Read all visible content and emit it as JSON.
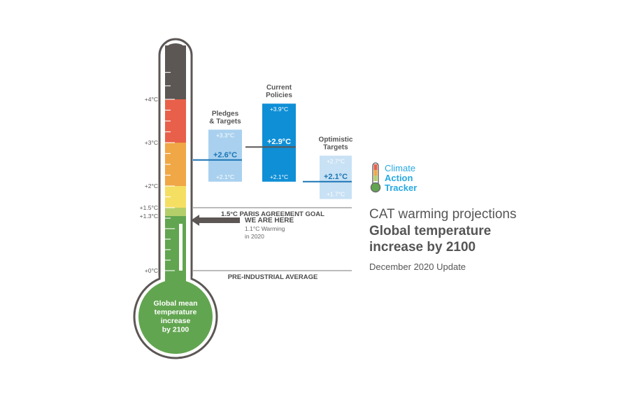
{
  "chart_data": {
    "type": "thermometer-range",
    "bulb_label": [
      "Global mean",
      "temperature",
      "increase",
      "by 2100"
    ],
    "ticks": [
      {
        "value": 4.0,
        "label": "+4°C"
      },
      {
        "value": 3.0,
        "label": "+3°C"
      },
      {
        "value": 2.0,
        "label": "+2°C"
      },
      {
        "value": 1.5,
        "label": "+1.5°C"
      },
      {
        "value": 1.3,
        "label": "+1.3°C"
      },
      {
        "value": 0.0,
        "label": "+0°C"
      }
    ],
    "scale_bands": [
      {
        "from": 4.0,
        "to": 5.0,
        "color": "#5c5655"
      },
      {
        "from": 3.0,
        "to": 4.0,
        "color": "#e8604a"
      },
      {
        "from": 2.0,
        "to": 3.0,
        "color": "#f0a745"
      },
      {
        "from": 1.5,
        "to": 2.0,
        "color": "#f5df63"
      },
      {
        "from": 1.3,
        "to": 1.5,
        "color": "#b4cf6a"
      },
      {
        "from": 0.0,
        "to": 1.3,
        "color": "#62a550"
      }
    ],
    "current_warming": 1.1,
    "series": [
      {
        "name": [
          "Pledges",
          "& Targets"
        ],
        "low": 2.1,
        "mid": 2.6,
        "high": 3.3,
        "low_label": "+2.1°C",
        "mid_label": "+2.6°C",
        "high_label": "+3.3°C",
        "color": "#a9d1ef"
      },
      {
        "name": [
          "Current",
          "Policies"
        ],
        "low": 2.1,
        "mid": 2.9,
        "high": 3.9,
        "low_label": "+2.1°C",
        "mid_label": "+2.9°C",
        "high_label": "+3.9°C",
        "color": "#0f8fd6"
      },
      {
        "name": [
          "Optimistic",
          "Targets"
        ],
        "low": 1.7,
        "mid": 2.1,
        "high": 2.7,
        "low_label": "+1.7°C",
        "mid_label": "+2.1°C",
        "high_label": "+2.7°C",
        "color": "#c8e1f4"
      }
    ],
    "reference_lines": [
      {
        "value": 1.5,
        "label": "1.5°C PARIS AGREEMENT GOAL"
      },
      {
        "value": 0.0,
        "label": "PRE-INDUSTRIAL AVERAGE"
      }
    ],
    "annotation": {
      "title": "WE ARE HERE",
      "lines": [
        "1.1°C Warming",
        "in 2020"
      ]
    }
  },
  "logo": {
    "lines": [
      "Climate",
      "Action",
      "Tracker"
    ]
  },
  "title": {
    "line1": "CAT warming projections",
    "line2": "Global temperature",
    "line3": "increase by 2100",
    "subtitle": "December 2020 Update"
  },
  "colors": {
    "accent": "#27a9e1",
    "reference_line": "#777777",
    "pointer": "#5c5655"
  }
}
